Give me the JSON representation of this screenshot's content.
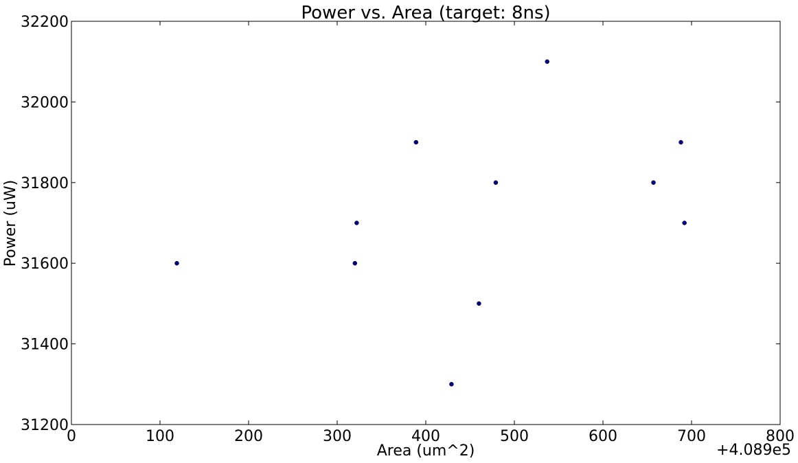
{
  "chart_data": {
    "type": "scatter",
    "title": "Power vs. Area (target: 8ns)",
    "xlabel": "Area (um^2)",
    "ylabel": "Power (uW)",
    "x_offset_label": "+4.089e5",
    "xlim": [
      0,
      800
    ],
    "ylim": [
      31200,
      32200
    ],
    "xticks": [
      0,
      100,
      200,
      300,
      400,
      500,
      600,
      700,
      800
    ],
    "yticks": [
      31200,
      31400,
      31600,
      31800,
      32000,
      32200
    ],
    "grid": false,
    "marker_color": "#00008b",
    "points": [
      {
        "x": 119,
        "y": 31600
      },
      {
        "x": 320,
        "y": 31600
      },
      {
        "x": 322,
        "y": 31700
      },
      {
        "x": 389,
        "y": 31900
      },
      {
        "x": 429,
        "y": 31300
      },
      {
        "x": 460,
        "y": 31500
      },
      {
        "x": 479,
        "y": 31800
      },
      {
        "x": 537,
        "y": 32100
      },
      {
        "x": 657,
        "y": 31800
      },
      {
        "x": 688,
        "y": 31900
      },
      {
        "x": 692,
        "y": 31700
      }
    ]
  }
}
